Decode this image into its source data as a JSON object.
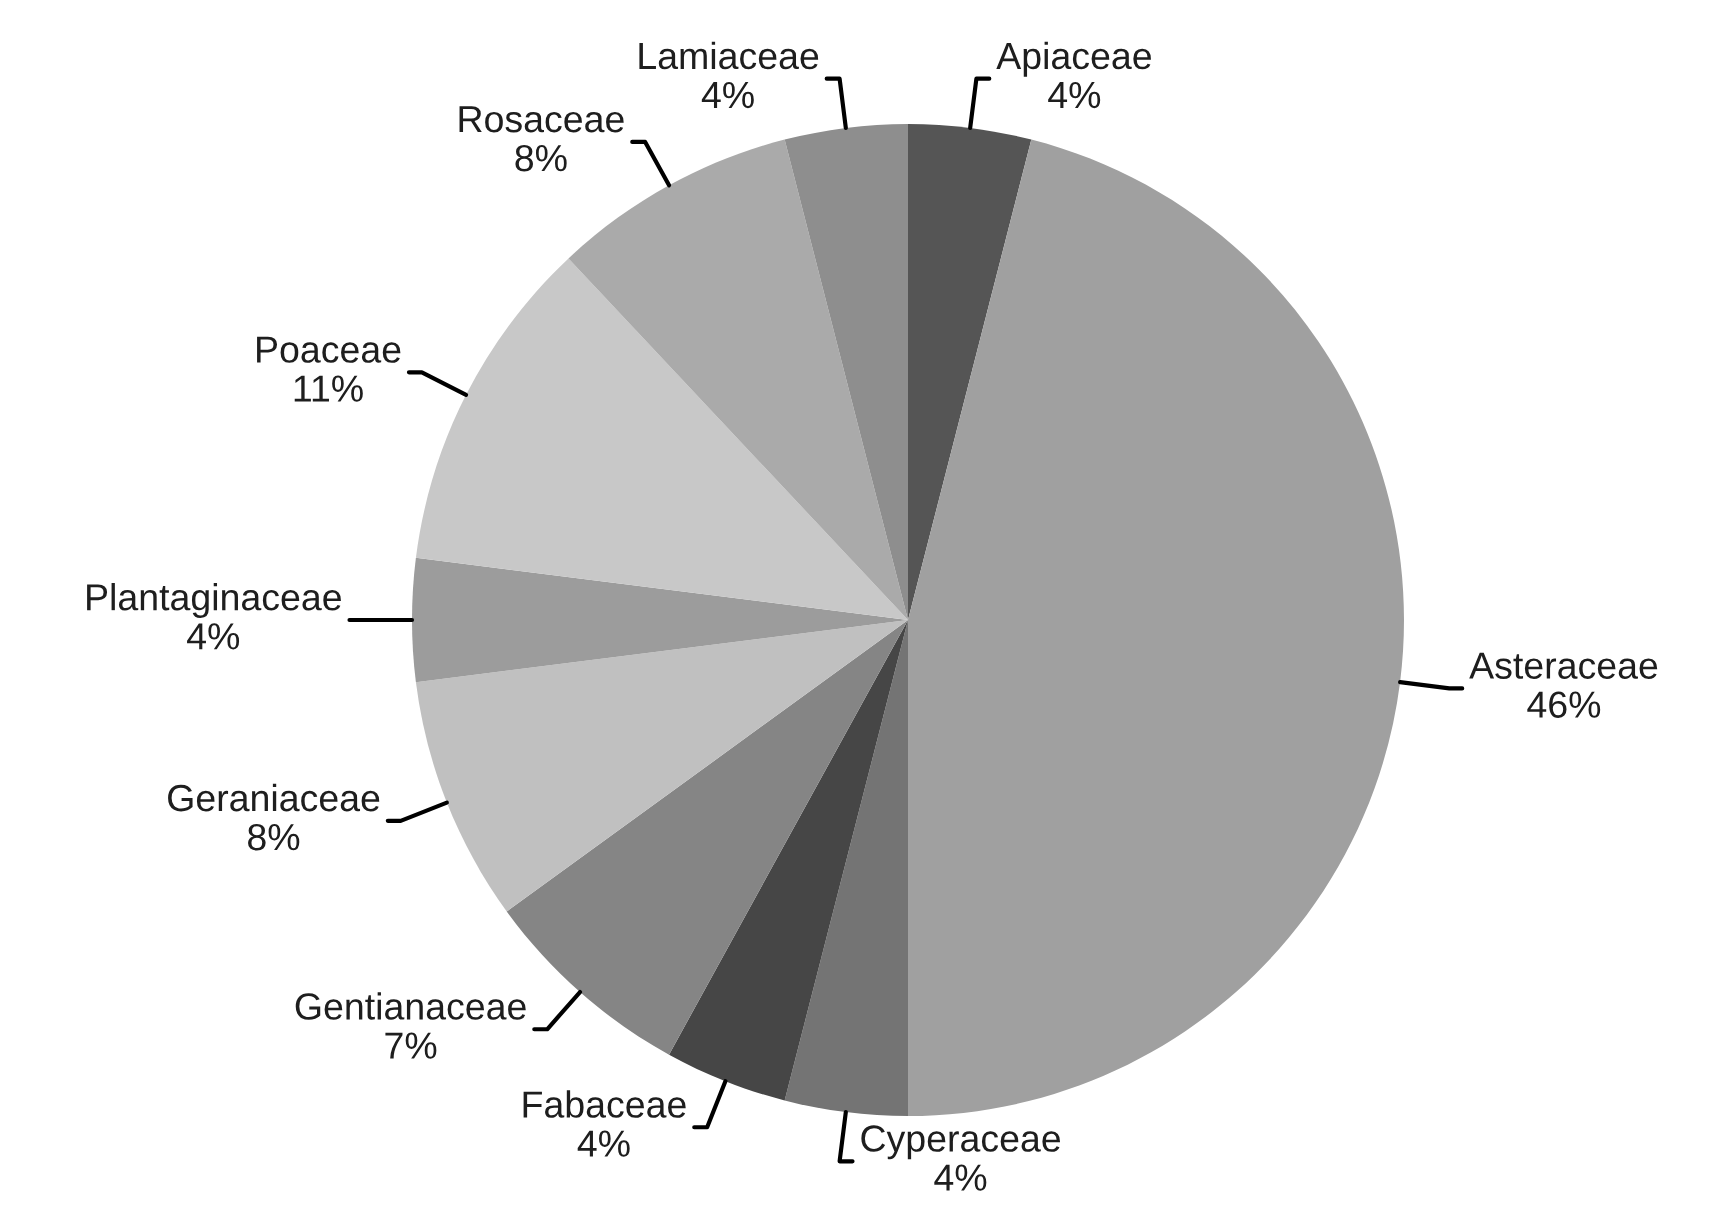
{
  "chart_data": {
    "type": "pie",
    "categories": [
      "Apiaceae",
      "Asteraceae",
      "Cyperaceae",
      "Fabaceae",
      "Gentianaceae",
      "Geraniaceae",
      "Plantaginaceae",
      "Poaceae",
      "Rosaceae",
      "Lamiaceae"
    ],
    "values": [
      4,
      46,
      4,
      4,
      7,
      8,
      4,
      11,
      8,
      4
    ],
    "value_labels": [
      "4%",
      "46%",
      "4%",
      "4%",
      "7%",
      "8%",
      "4%",
      "11%",
      "8%",
      "4%"
    ],
    "colors": [
      "#555555",
      "#a0a0a0",
      "#747474",
      "#464646",
      "#858585",
      "#c0c0c0",
      "#9c9c9c",
      "#c8c8c8",
      "#aaaaaa",
      "#8e8e8e"
    ]
  }
}
